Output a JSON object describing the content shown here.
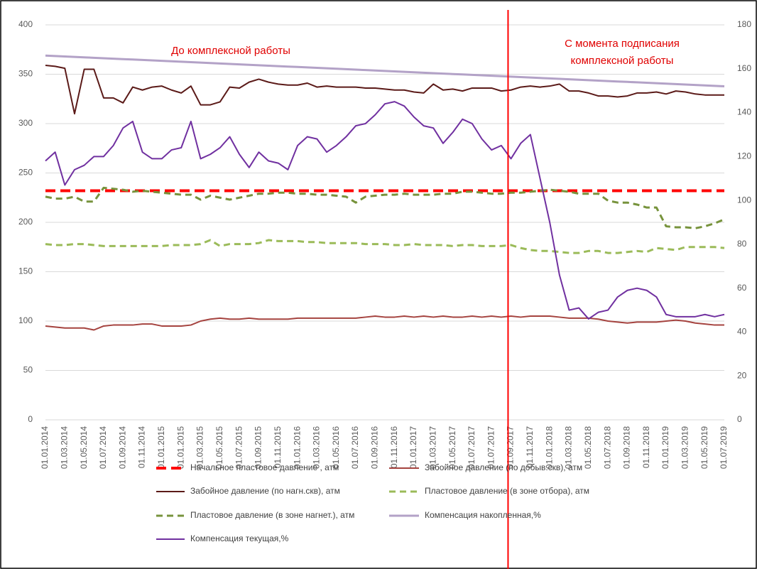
{
  "chart_data": {
    "type": "line",
    "categories": [
      "01.01.2014",
      null,
      "01.03.2014",
      null,
      "01.05.2014",
      null,
      "01.07.2014",
      null,
      "01.09.2014",
      null,
      "01.11.2014",
      null,
      "01.01.2015",
      null,
      "01.01.2015",
      null,
      "01.03.2015",
      null,
      "01.05.2015",
      null,
      "01.07.2015",
      null,
      "01.09.2015",
      null,
      "01.11.2015",
      null,
      "01.01.2016",
      null,
      "01.03.2016",
      null,
      "01.05.2016",
      null,
      "01.07.2016",
      null,
      "01.09.2016",
      null,
      "01.11.2016",
      null,
      "01.01.2017",
      null,
      "01.03.2017",
      null,
      "01.05.2017",
      null,
      "01.07.2017",
      null,
      "01.07.2017",
      null,
      "01.09.2017",
      null,
      "01.11.2017",
      null,
      "01.01.2018",
      null,
      "01.03.2018",
      null,
      "01.05.2018",
      null,
      "01.07.2018",
      null,
      "01.09.2018",
      null,
      "01.11.2018",
      null,
      "01.01.2019",
      null,
      "01.03.2019",
      null,
      "01.05.2019",
      null,
      "01.07.2019"
    ],
    "series": [
      {
        "name": "Начальное пластовое давление , атм",
        "color": "#ff0000",
        "dash": "long",
        "width": 4,
        "values": [
          232,
          232,
          232,
          232,
          232,
          232,
          232,
          232,
          232,
          232,
          232,
          232,
          232,
          232,
          232,
          232,
          232,
          232,
          232,
          232,
          232,
          232,
          232,
          232,
          232,
          232,
          232,
          232,
          232,
          232,
          232,
          232,
          232,
          232,
          232,
          232,
          232,
          232,
          232,
          232,
          232,
          232,
          232,
          232,
          232,
          232,
          232,
          232,
          232,
          232,
          232,
          232,
          232,
          232,
          232,
          232,
          232,
          232,
          232,
          232,
          232,
          232,
          232,
          232,
          232,
          232,
          232,
          232,
          232,
          232,
          232
        ]
      },
      {
        "name": "Забойное давление (по добыв.скв), атм",
        "color": "#a5433f",
        "width": 2,
        "values": [
          95,
          94,
          93,
          93,
          93,
          91,
          95,
          96,
          96,
          96,
          97,
          97,
          95,
          95,
          95,
          96,
          100,
          102,
          103,
          102,
          102,
          103,
          102,
          102,
          102,
          102,
          103,
          103,
          103,
          103,
          103,
          103,
          103,
          104,
          105,
          104,
          104,
          105,
          104,
          105,
          104,
          105,
          104,
          104,
          105,
          104,
          105,
          104,
          105,
          104,
          105,
          105,
          105,
          104,
          103,
          103,
          103,
          102,
          100,
          99,
          98,
          99,
          99,
          99,
          100,
          101,
          100,
          98,
          97,
          96,
          96
        ]
      },
      {
        "name": "Забойное давление (по нагн.скв), атм",
        "color": "#5b1a18",
        "width": 2,
        "values": [
          359,
          358,
          356,
          310,
          355,
          355,
          326,
          326,
          321,
          337,
          334,
          337,
          338,
          334,
          331,
          338,
          319,
          319,
          322,
          337,
          336,
          342,
          345,
          342,
          340,
          339,
          339,
          341,
          337,
          338,
          337,
          337,
          337,
          336,
          336,
          335,
          334,
          334,
          332,
          331,
          340,
          334,
          335,
          333,
          336,
          336,
          336,
          333,
          334,
          337,
          338,
          337,
          338,
          340,
          333,
          333,
          331,
          328,
          328,
          327,
          328,
          331,
          331,
          332,
          330,
          333,
          332,
          330,
          329,
          329,
          329
        ]
      },
      {
        "name": "Пластовое давление (в зоне отбора), атм",
        "color": "#9bbb59",
        "dash": "short",
        "width": 3,
        "values": [
          178,
          177,
          177,
          178,
          178,
          177,
          176,
          176,
          176,
          176,
          176,
          176,
          176,
          177,
          177,
          177,
          178,
          182,
          176,
          178,
          178,
          178,
          179,
          182,
          181,
          181,
          181,
          180,
          180,
          179,
          179,
          179,
          179,
          178,
          178,
          178,
          177,
          177,
          178,
          177,
          177,
          177,
          176,
          177,
          177,
          176,
          176,
          176,
          177,
          174,
          172,
          171,
          171,
          170,
          169,
          169,
          171,
          171,
          169,
          169,
          170,
          171,
          170,
          174,
          173,
          172,
          175,
          175,
          175,
          175,
          174
        ]
      },
      {
        "name": "Пластовое давление (в зоне нагнет.), атм",
        "color": "#77933c",
        "dash": "short",
        "width": 3,
        "values": [
          226,
          224,
          224,
          226,
          221,
          221,
          235,
          234,
          233,
          231,
          232,
          231,
          230,
          229,
          228,
          228,
          223,
          227,
          225,
          223,
          225,
          227,
          229,
          229,
          230,
          230,
          229,
          229,
          228,
          228,
          227,
          226,
          220,
          226,
          227,
          228,
          228,
          229,
          228,
          228,
          228,
          229,
          229,
          231,
          231,
          230,
          229,
          229,
          230,
          230,
          231,
          232,
          233,
          232,
          231,
          229,
          229,
          229,
          222,
          220,
          220,
          218,
          215,
          215,
          196,
          195,
          195,
          194,
          196,
          199,
          203
        ]
      },
      {
        "name": "Компенсация накопленная,%",
        "color": "#b3a2c7",
        "width": 3,
        "axis": "y2",
        "values": [
          166,
          165.8,
          165.6,
          165.4,
          165.2,
          165,
          164.8,
          164.6,
          164.4,
          164.2,
          164,
          163.8,
          163.6,
          163.4,
          163.2,
          163,
          162.8,
          162.6,
          162.4,
          162.2,
          162,
          161.8,
          161.6,
          161.4,
          161.2,
          161,
          160.8,
          160.6,
          160.4,
          160.2,
          160,
          159.8,
          159.6,
          159.4,
          159.2,
          159,
          158.8,
          158.6,
          158.4,
          158.2,
          158,
          157.8,
          157.6,
          157.4,
          157.2,
          157,
          156.8,
          156.6,
          156.4,
          156.2,
          156,
          155.8,
          155.6,
          155.4,
          155.2,
          155,
          154.8,
          154.6,
          154.4,
          154.2,
          154,
          153.8,
          153.6,
          153.4,
          153.2,
          153,
          152.8,
          152.6,
          152.4,
          152.2,
          152
        ]
      },
      {
        "name": "Компенсация текущая,%",
        "color": "#7030a0",
        "width": 2,
        "axis": "y2",
        "values": [
          118,
          122,
          107,
          114,
          116,
          120,
          120,
          125,
          133,
          136,
          122,
          119,
          119,
          123,
          124,
          136,
          119,
          121,
          124,
          129,
          121,
          115,
          122,
          118,
          117,
          114,
          125,
          129,
          128,
          122,
          125,
          129,
          134,
          135,
          139,
          144,
          145,
          143,
          138,
          134,
          133,
          126,
          131,
          137,
          135,
          128,
          123,
          125,
          119,
          126,
          130,
          110,
          90,
          66,
          50,
          51,
          46,
          49,
          50,
          56,
          59,
          60,
          59,
          56,
          48,
          47,
          47,
          47,
          48,
          47,
          48
        ]
      }
    ],
    "ylim": [
      0,
      400
    ],
    "yticks": [
      0,
      50,
      100,
      150,
      200,
      250,
      300,
      350,
      400
    ],
    "y2lim": [
      0,
      180
    ],
    "y2ticks": [
      0,
      20,
      40,
      60,
      80,
      100,
      120,
      140,
      160,
      180
    ],
    "grid": true,
    "legend": "bottom",
    "vline_at": 47.7,
    "vline_color": "#ff0000",
    "annotations": [
      [
        "До комплексной работы"
      ],
      [
        "С момента подписания",
        "комплексной работы"
      ]
    ]
  }
}
